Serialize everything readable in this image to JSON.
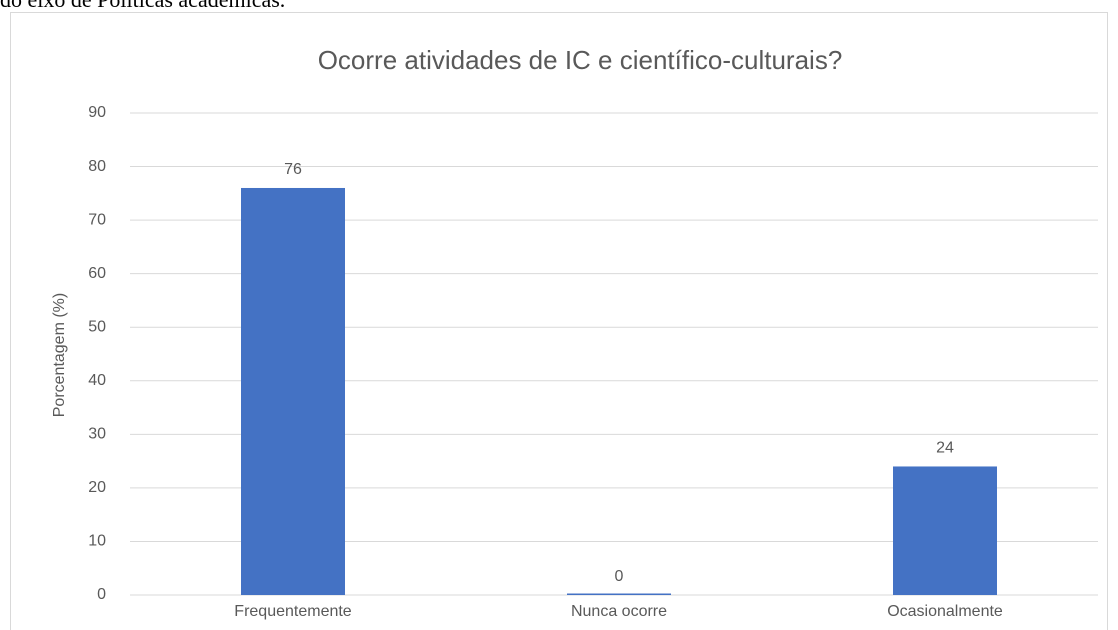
{
  "page_text": "do eixo de Políticas acadêmicas.",
  "chart_data": {
    "type": "bar",
    "title": "Ocorre atividades de IC e científico-culturais?",
    "y_label": "Porcentagem (%)",
    "categories": [
      "Frequentemente",
      "Nunca ocorre",
      "Ocasionalmente"
    ],
    "values": [
      76,
      0,
      24
    ],
    "color": "#4472c4",
    "ylim": [
      0,
      90
    ],
    "yticks": [
      0,
      10,
      20,
      30,
      40,
      50,
      60,
      70,
      80,
      90
    ],
    "grid": true
  }
}
